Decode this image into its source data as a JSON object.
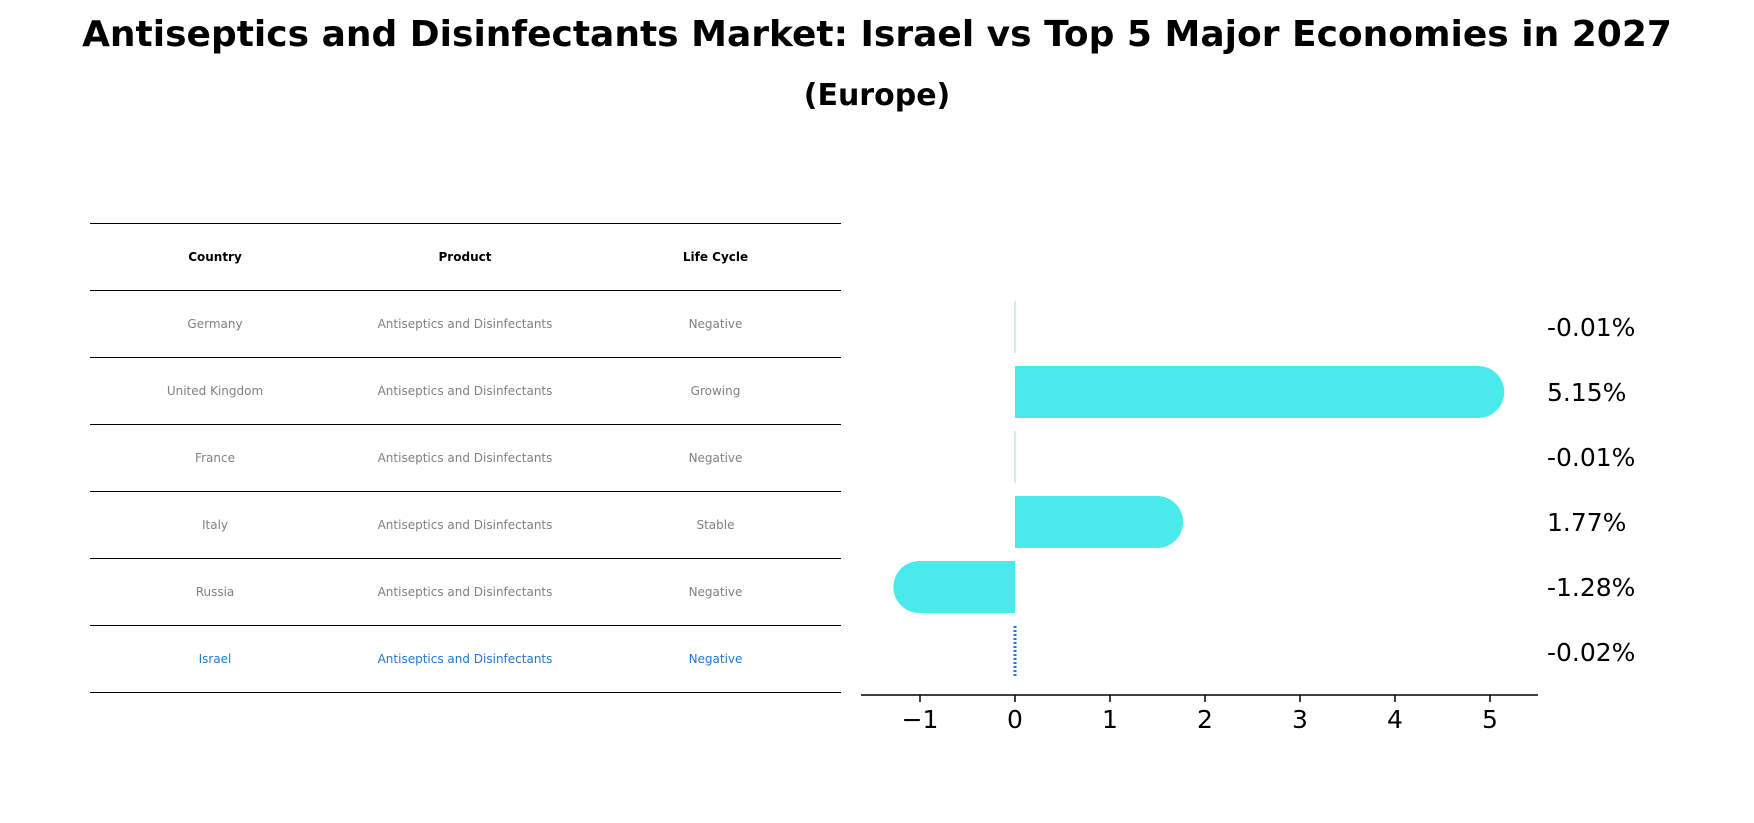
{
  "title": "Antiseptics and Disinfectants Market: Israel vs Top 5 Major Economies in 2027",
  "subtitle": "(Europe)",
  "table": {
    "headers": [
      "Country",
      "Product",
      "Life Cycle"
    ],
    "rows": [
      [
        "Germany",
        "Antiseptics and Disinfectants",
        "Negative"
      ],
      [
        "United Kingdom",
        "Antiseptics and Disinfectants",
        "Growing"
      ],
      [
        "France",
        "Antiseptics and Disinfectants",
        "Negative"
      ],
      [
        "Italy",
        "Antiseptics and Disinfectants",
        "Stable"
      ],
      [
        "Russia",
        "Antiseptics and Disinfectants",
        "Negative"
      ],
      [
        "Israel",
        "Antiseptics and Disinfectants",
        "Negative"
      ]
    ],
    "highlight_row": 5,
    "text_color": "#808080",
    "highlight_color": "#1f77d0"
  },
  "chart_data": {
    "type": "bar",
    "orientation": "horizontal",
    "categories": [
      "Germany",
      "United Kingdom",
      "France",
      "Italy",
      "Russia",
      "Israel"
    ],
    "values": [
      -0.01,
      5.15,
      -0.01,
      1.77,
      -1.28,
      -0.02
    ],
    "value_labels": [
      "-0.01%",
      "5.15%",
      "-0.01%",
      "1.77%",
      "-1.28%",
      "-0.02%"
    ],
    "xlim": [
      -1.6,
      5.5
    ],
    "xticks": [
      -1,
      0,
      1,
      2,
      3,
      4,
      5
    ],
    "xtick_labels": [
      "−1",
      "0",
      "1",
      "2",
      "3",
      "4",
      "5"
    ],
    "bar_color": "#4beaea",
    "highlight_color": "#1f77d0",
    "highlight_index": 5,
    "highlight_style": "dotted",
    "grid": false
  }
}
